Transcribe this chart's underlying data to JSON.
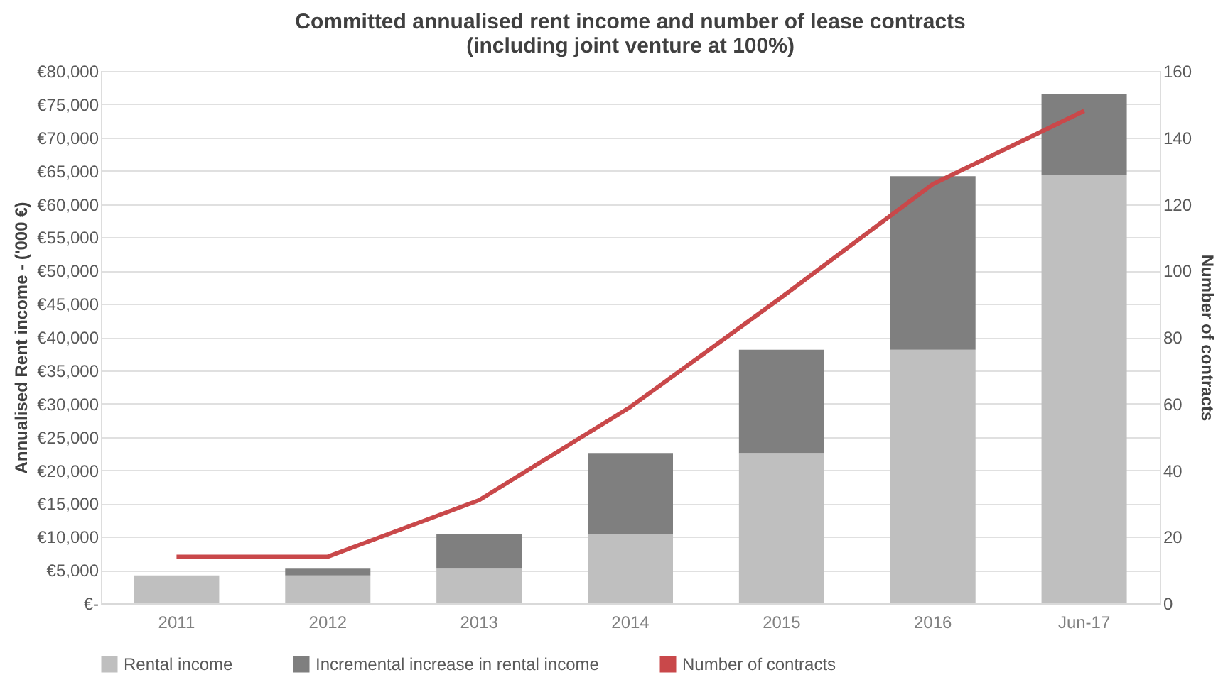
{
  "chart_data": {
    "type": "bar",
    "title": "Committed annualised rent income and number of lease contracts\n(including joint venture at 100%)",
    "ylabel": "Annualised Rent income -  ('000 €)",
    "y2label": "Number of contracts",
    "categories": [
      "2011",
      "2012",
      "2013",
      "2014",
      "2015",
      "2016",
      "Jun-17"
    ],
    "stacked": true,
    "series": [
      {
        "name": "Rental income",
        "color": "#bfbfbf",
        "values": [
          4200,
          4200,
          5200,
          10400,
          22600,
          38100,
          64400
        ]
      },
      {
        "name": "Incremental increase in rental income",
        "color": "#7f7f7f",
        "values": [
          0,
          1000,
          5200,
          12200,
          15500,
          26100,
          12200
        ]
      },
      {
        "name": "Number of contracts",
        "type": "line",
        "axis": "y2",
        "color": "#c9484a",
        "values": [
          14,
          14,
          31,
          59,
          92,
          126,
          148
        ]
      }
    ],
    "ylim": [
      0,
      80000
    ],
    "yticks": [
      {
        "value": 0,
        "label": "€-"
      },
      {
        "value": 5000,
        "label": "€5,000"
      },
      {
        "value": 10000,
        "label": "€10,000"
      },
      {
        "value": 15000,
        "label": "€15,000"
      },
      {
        "value": 20000,
        "label": "€20,000"
      },
      {
        "value": 25000,
        "label": "€25,000"
      },
      {
        "value": 30000,
        "label": "€30,000"
      },
      {
        "value": 35000,
        "label": "€35,000"
      },
      {
        "value": 40000,
        "label": "€40,000"
      },
      {
        "value": 45000,
        "label": "€45,000"
      },
      {
        "value": 50000,
        "label": "€50,000"
      },
      {
        "value": 55000,
        "label": "€55,000"
      },
      {
        "value": 60000,
        "label": "€60,000"
      },
      {
        "value": 65000,
        "label": "€65,000"
      },
      {
        "value": 70000,
        "label": "€70,000"
      },
      {
        "value": 75000,
        "label": "€75,000"
      },
      {
        "value": 80000,
        "label": "€80,000"
      }
    ],
    "y2lim": [
      0,
      160
    ],
    "y2ticks": [
      0,
      20,
      40,
      60,
      80,
      100,
      120,
      140,
      160
    ],
    "grid": "y",
    "legend": "bottom",
    "marker": "none",
    "line_style": "solid"
  }
}
